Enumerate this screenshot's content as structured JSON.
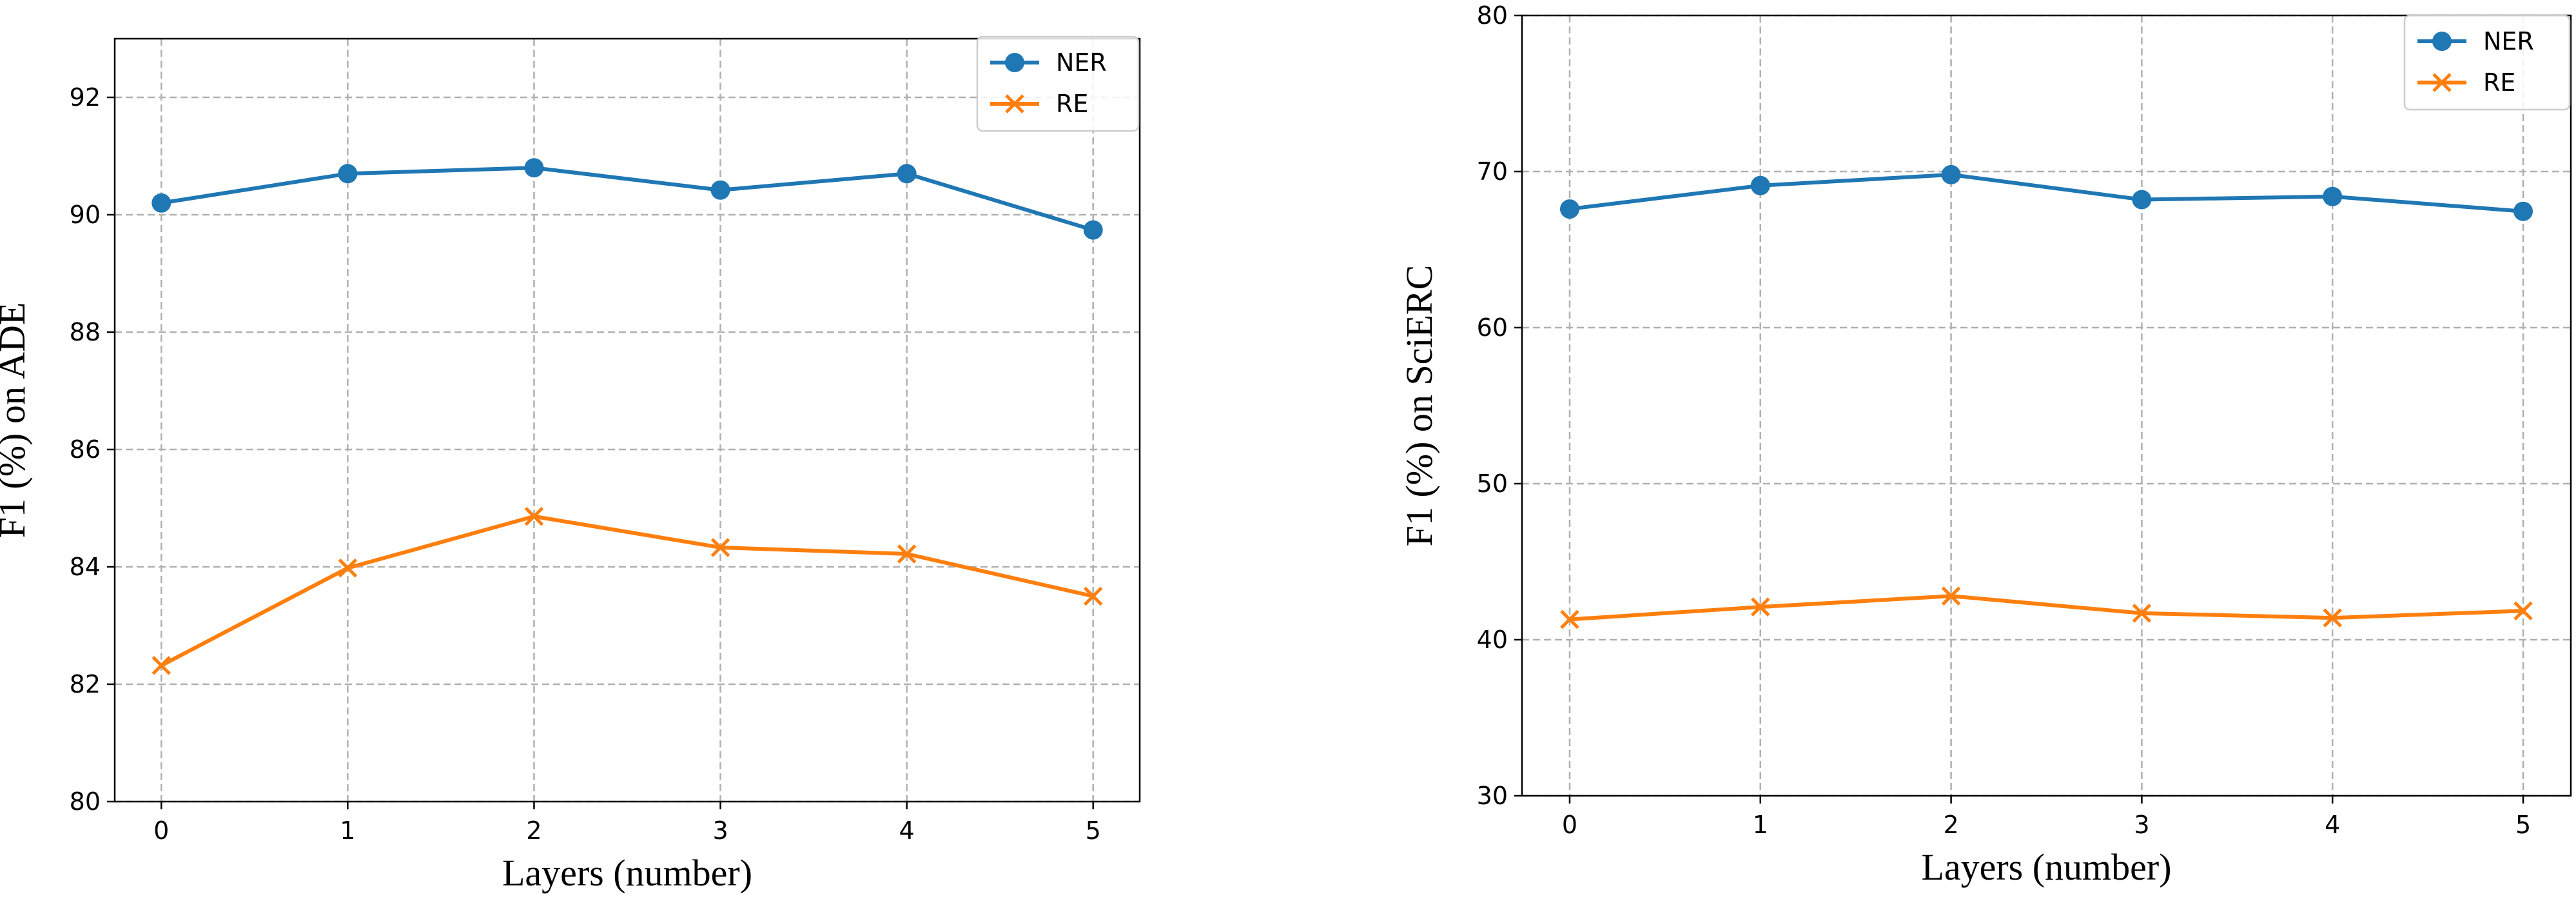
{
  "chart_data": [
    {
      "type": "line",
      "title": "",
      "xlabel": "Layers (number)",
      "ylabel": "F1 (%) on ADE",
      "x": [
        0,
        1,
        2,
        3,
        4,
        5
      ],
      "xticks": [
        "0",
        "1",
        "2",
        "3",
        "4",
        "5"
      ],
      "yticks": [
        "80",
        "82",
        "84",
        "86",
        "88",
        "90",
        "92"
      ],
      "ylim": [
        80,
        93
      ],
      "xlim": [
        -0.25,
        5.25
      ],
      "grid": true,
      "legend": "top-right",
      "series": [
        {
          "name": "NER",
          "color": "#1f77b4",
          "marker": "circle",
          "values": [
            90.2,
            90.7,
            90.8,
            90.42,
            90.7,
            89.74
          ]
        },
        {
          "name": "RE",
          "color": "#ff7f0e",
          "marker": "x",
          "values": [
            82.32,
            83.98,
            84.86,
            84.33,
            84.22,
            83.5
          ]
        }
      ]
    },
    {
      "type": "line",
      "title": "",
      "xlabel": "Layers (number)",
      "ylabel": "F1 (%) on SciERC",
      "x": [
        0,
        1,
        2,
        3,
        4,
        5
      ],
      "xticks": [
        "0",
        "1",
        "2",
        "3",
        "4",
        "5"
      ],
      "yticks": [
        "30",
        "40",
        "50",
        "60",
        "70",
        "80"
      ],
      "ylim": [
        30,
        80
      ],
      "xlim": [
        -0.25,
        5.25
      ],
      "grid": true,
      "legend": "top-right",
      "series": [
        {
          "name": "NER",
          "color": "#1f77b4",
          "marker": "circle",
          "values": [
            67.6,
            69.1,
            69.8,
            68.2,
            68.4,
            67.45
          ]
        },
        {
          "name": "RE",
          "color": "#ff7f0e",
          "marker": "x",
          "values": [
            41.3,
            42.1,
            42.8,
            41.7,
            41.4,
            41.85
          ]
        }
      ]
    }
  ]
}
